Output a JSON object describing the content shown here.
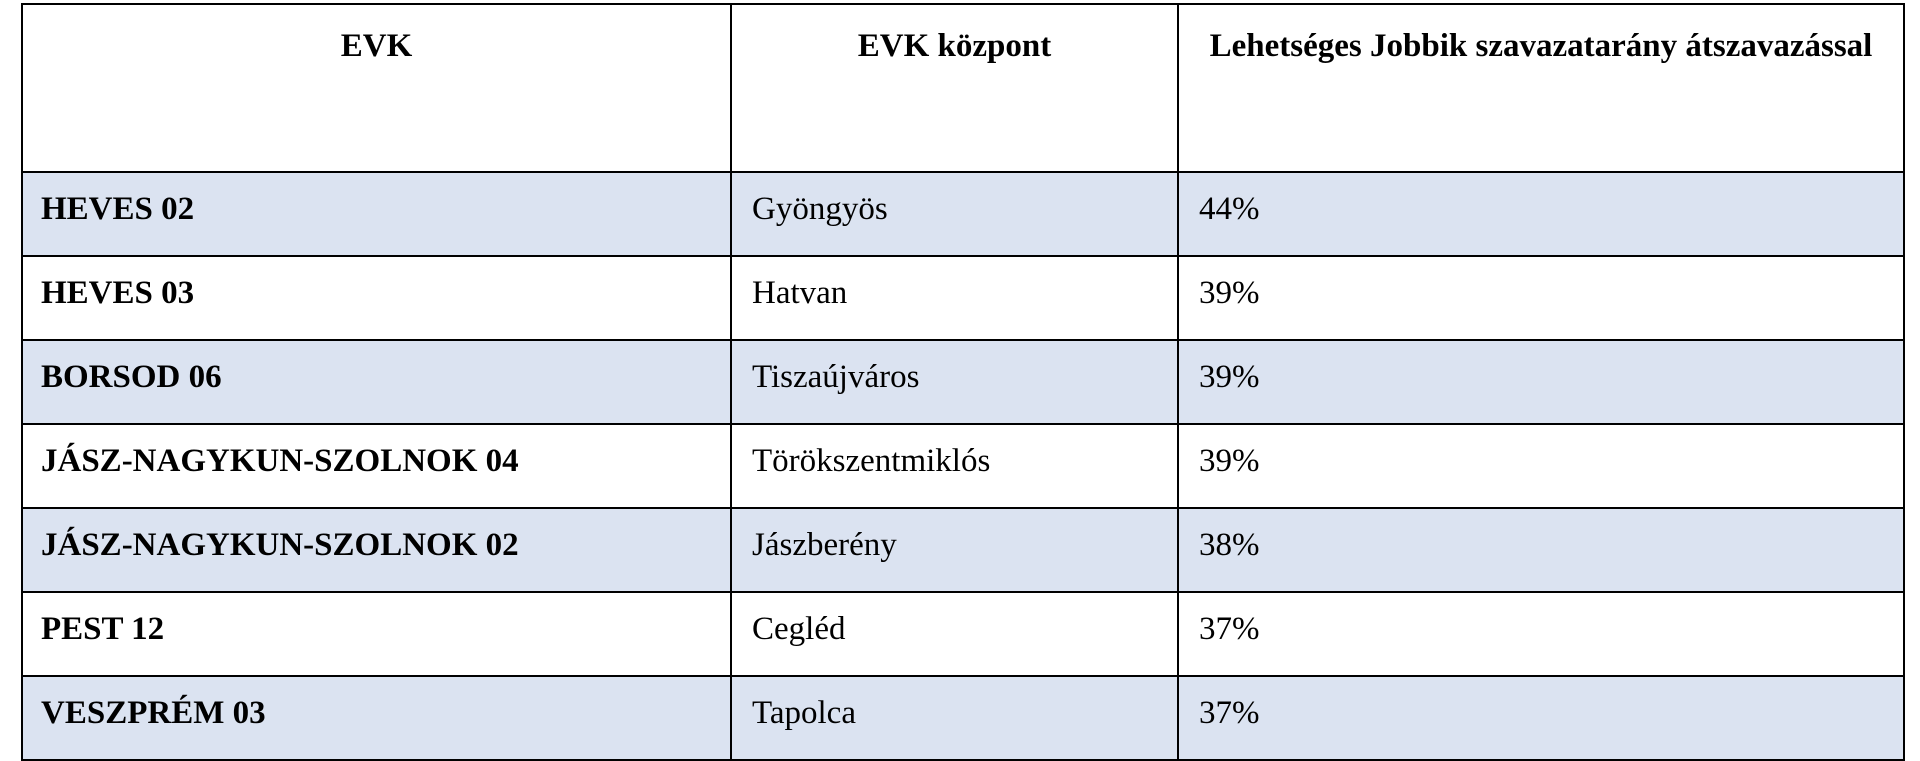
{
  "table": {
    "header": [
      "EVK",
      "EVK központ",
      "Lehetséges Jobbik szavazatarány átszavazással"
    ],
    "rows": [
      [
        "HEVES 02",
        "Gyöngyös",
        "44%"
      ],
      [
        "HEVES 03",
        "Hatvan",
        "39%"
      ],
      [
        "BORSOD 06",
        "Tiszaújváros",
        "39%"
      ],
      [
        "JÁSZ-NAGYKUN-SZOLNOK 04",
        "Törökszentmiklós",
        "39%"
      ],
      [
        "JÁSZ-NAGYKUN-SZOLNOK 02",
        "Jászberény",
        "38%"
      ],
      [
        "PEST 12",
        "Cegléd",
        "37%"
      ],
      [
        "VESZPRÉM 03",
        "Tapolca",
        "37%"
      ]
    ]
  }
}
